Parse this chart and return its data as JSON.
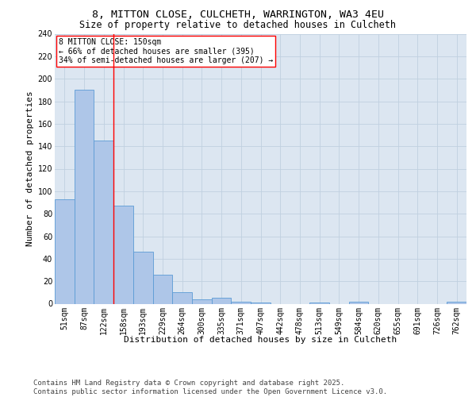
{
  "title": "8, MITTON CLOSE, CULCHETH, WARRINGTON, WA3 4EU",
  "subtitle": "Size of property relative to detached houses in Culcheth",
  "xlabel": "Distribution of detached houses by size in Culcheth",
  "ylabel": "Number of detached properties",
  "footer_line1": "Contains HM Land Registry data © Crown copyright and database right 2025.",
  "footer_line2": "Contains public sector information licensed under the Open Government Licence v3.0.",
  "categories": [
    "51sqm",
    "87sqm",
    "122sqm",
    "158sqm",
    "193sqm",
    "229sqm",
    "264sqm",
    "300sqm",
    "335sqm",
    "371sqm",
    "407sqm",
    "442sqm",
    "478sqm",
    "513sqm",
    "549sqm",
    "584sqm",
    "620sqm",
    "655sqm",
    "691sqm",
    "726sqm",
    "762sqm"
  ],
  "values": [
    93,
    190,
    145,
    87,
    46,
    26,
    10,
    4,
    5,
    2,
    1,
    0,
    0,
    1,
    0,
    2,
    0,
    0,
    0,
    0,
    2
  ],
  "bar_color": "#aec6e8",
  "bar_edge_color": "#5b9bd5",
  "vline_x": 2.5,
  "vline_color": "red",
  "annotation_text": "8 MITTON CLOSE: 150sqm\n← 66% of detached houses are smaller (395)\n34% of semi-detached houses are larger (207) →",
  "annotation_box_color": "white",
  "annotation_box_edge": "red",
  "ylim": [
    0,
    240
  ],
  "yticks": [
    0,
    20,
    40,
    60,
    80,
    100,
    120,
    140,
    160,
    180,
    200,
    220,
    240
  ],
  "grid_color": "#c0d0e0",
  "background_color": "#dce6f1",
  "title_fontsize": 9.5,
  "subtitle_fontsize": 8.5,
  "axis_label_fontsize": 8,
  "tick_fontsize": 7,
  "annotation_fontsize": 7,
  "footer_fontsize": 6.5
}
